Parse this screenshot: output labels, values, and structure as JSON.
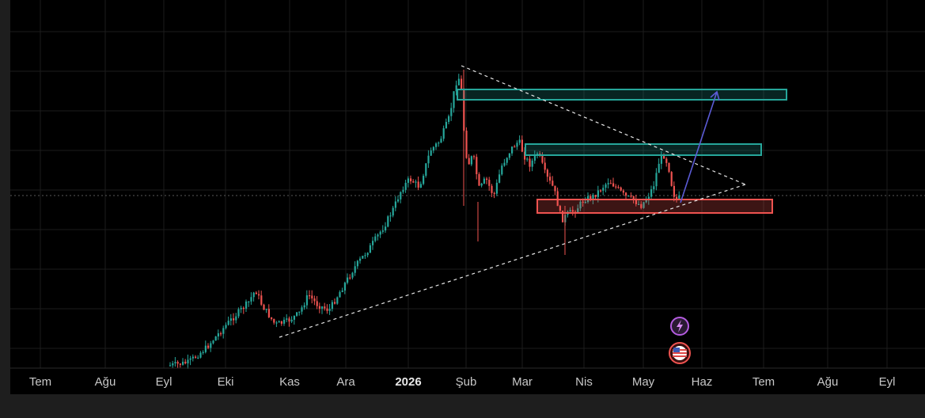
{
  "chart_data": {
    "type": "candlestick",
    "title": "",
    "xlabel": "",
    "ylabel": "",
    "grid": true,
    "x_tick_labels": [
      "Tem",
      "Ağu",
      "Eyl",
      "Eki",
      "Kas",
      "Ara",
      "2026",
      "Şub",
      "Mar",
      "Nis",
      "May",
      "Haz",
      "Tem",
      "Ağu",
      "Eyl"
    ],
    "major_tick_label": "2026",
    "colors": {
      "background": "#000000",
      "grid": "#1c1c1c",
      "up_candle": "#26a69a",
      "down_candle": "#ef5350",
      "trendlines": "#e6e6e6",
      "resistance_zone": "#26a69a",
      "support_zone": "#ef5350",
      "projection_arrow": "#5b5bd6",
      "event_icon": "#b45ce0",
      "footer": "#1e1e1e"
    },
    "annotations": [
      {
        "kind": "resistance-zone",
        "label": "upper target zone"
      },
      {
        "kind": "resistance-zone",
        "label": "middle resistance zone"
      },
      {
        "kind": "support-zone",
        "label": "support zone"
      },
      {
        "kind": "descending-trendline"
      },
      {
        "kind": "ascending-trendline"
      },
      {
        "kind": "projection-arrow"
      }
    ],
    "event_icons": [
      "lightning-icon",
      "us-flag-icon"
    ]
  }
}
